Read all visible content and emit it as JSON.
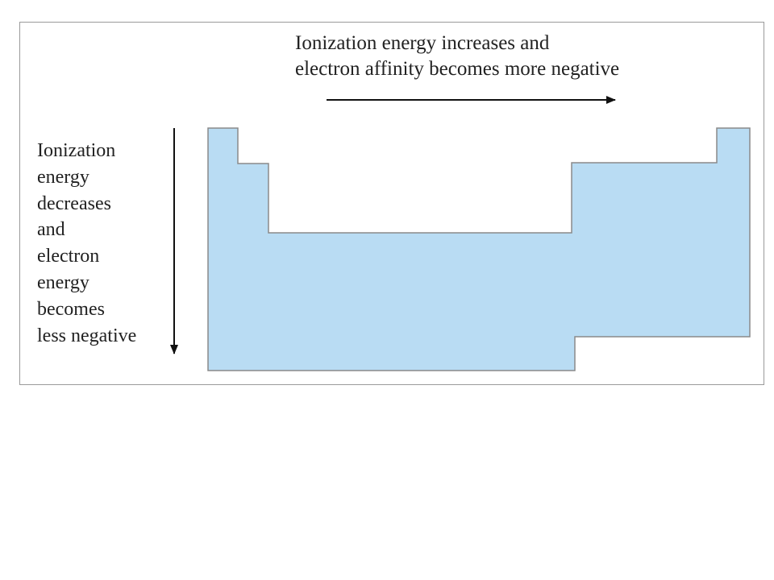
{
  "diagram": {
    "horizontal_trend_text": [
      "Ionization energy increases and",
      "electron affinity becomes more negative"
    ],
    "vertical_trend_text": [
      "Ionization",
      "energy",
      "decreases",
      "and",
      "electron",
      "energy",
      "becomes",
      "less negative"
    ],
    "horizontal_arrow_direction": "left-to-right",
    "vertical_arrow_direction": "top-to-bottom",
    "shape": "periodic table outline",
    "colors": {
      "table_fill": "#b9dcf3",
      "table_outline": "#8a8a8a",
      "arrow": "#111111",
      "frame": "#9a9a9a",
      "text": "#222222"
    }
  }
}
